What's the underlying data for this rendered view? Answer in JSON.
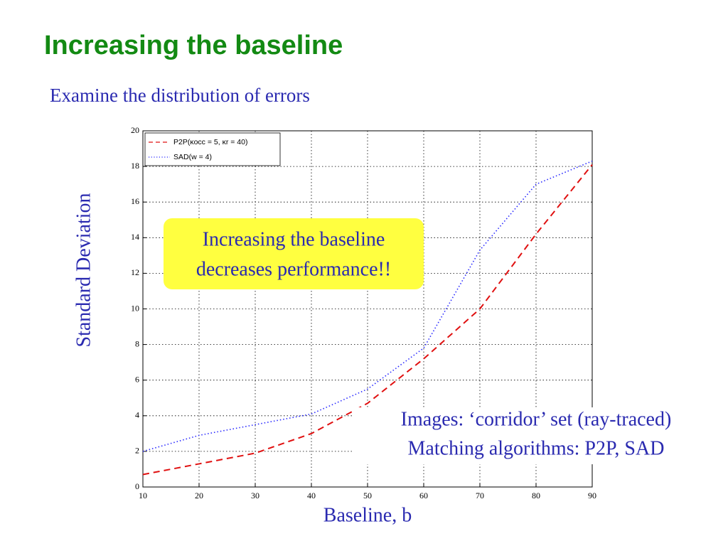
{
  "title": "Increasing the baseline",
  "subtitle": "Examine the distribution of errors",
  "chart_data": {
    "type": "line",
    "ylabel": "Standard Deviation",
    "xlabel": "Baseline, b",
    "x": [
      10,
      20,
      30,
      40,
      50,
      60,
      70,
      80,
      90
    ],
    "series": [
      {
        "name": "P2P(κocc = 5, κr = 40)",
        "color": "#e01010",
        "style": "dashed",
        "values": [
          0.7,
          1.3,
          1.9,
          3.0,
          4.7,
          7.2,
          10.0,
          14.2,
          18.1
        ]
      },
      {
        "name": "SAD(w = 4)",
        "color": "#2a2aff",
        "style": "dotted",
        "values": [
          2.0,
          2.9,
          3.5,
          4.1,
          5.5,
          7.8,
          13.3,
          17.0,
          18.3
        ]
      }
    ],
    "xlim": [
      10,
      90
    ],
    "xticks": [
      10,
      20,
      30,
      40,
      50,
      60,
      70,
      80,
      90
    ],
    "ylim": [
      0,
      20
    ],
    "yticks": [
      0,
      2,
      4,
      6,
      8,
      10,
      12,
      14,
      16,
      18,
      20
    ],
    "grid": true,
    "legend": "top-left"
  },
  "callout": [
    "Increasing the baseline",
    "decreases performance!!"
  ],
  "note": [
    "Images: ‘corridor’ set (ray-traced)",
    "Matching algorithms: P2P, SAD"
  ]
}
